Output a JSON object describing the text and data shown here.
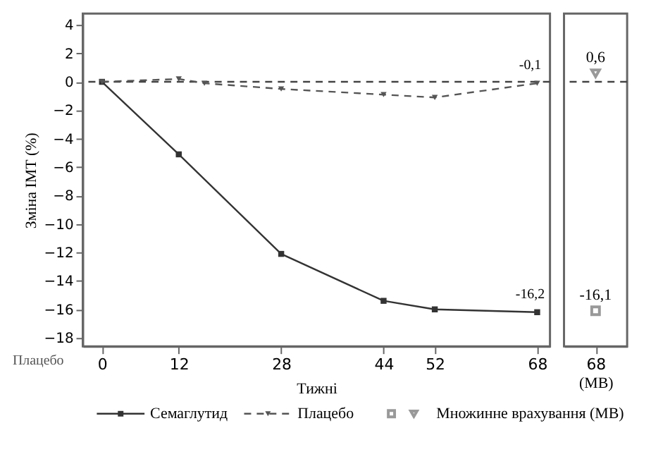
{
  "chart_data": [
    {
      "type": "line",
      "ylabel": "Зміна ІМТ (%)",
      "xlabel": "Тижні",
      "xlim": [
        -3,
        70
      ],
      "xticks": [
        0,
        12,
        28,
        44,
        52,
        68
      ],
      "ylim": [
        -18.6,
        4.8
      ],
      "yticks": [
        -18,
        -16,
        -14,
        -12,
        -10,
        -8,
        -6,
        -4,
        -2,
        0,
        2,
        4
      ],
      "grid": false,
      "legend": "bottom",
      "ref_lines": [
        {
          "axis": "y",
          "value": 0,
          "color": "#444444",
          "line_style": "dashed"
        }
      ],
      "annotations": [
        "Плацебо"
      ],
      "series": [
        {
          "name": "Семаглутид",
          "color": "#333333",
          "line_style": "solid",
          "marker": "square",
          "x": [
            0,
            12,
            28,
            44,
            52,
            68
          ],
          "values": [
            0,
            -5.1,
            -12.1,
            -15.4,
            -16.0,
            -16.2
          ],
          "value_labels": [
            null,
            null,
            null,
            null,
            null,
            "-16,2"
          ]
        },
        {
          "name": "Плацебо",
          "color": "#555555",
          "line_style": "dashed",
          "marker": "triangle",
          "x": [
            0,
            12,
            16,
            28,
            44,
            52,
            68
          ],
          "values": [
            0,
            0.2,
            -0.1,
            -0.5,
            -0.9,
            -1.1,
            -0.1
          ],
          "value_labels": [
            null,
            null,
            null,
            null,
            null,
            null,
            "-0,1"
          ]
        }
      ]
    },
    {
      "type": "scatter",
      "categories": [
        "68"
      ],
      "xlabel": "(МВ)",
      "ylim": [
        -18.6,
        4.8
      ],
      "tick_labels": "x",
      "grid": false,
      "ref_lines": [
        {
          "axis": "y",
          "value": 0,
          "color": "#444444",
          "line_style": "dashed"
        }
      ],
      "series": [
        {
          "name": "Множинне врахування (МВ)",
          "color": "#999999",
          "marker": "square",
          "values": [
            -16.1
          ],
          "value_labels": [
            "-16,1"
          ]
        },
        {
          "color": "#999999",
          "marker": "triangle",
          "values": [
            0.6
          ],
          "value_labels": [
            "0,6"
          ]
        }
      ]
    }
  ]
}
